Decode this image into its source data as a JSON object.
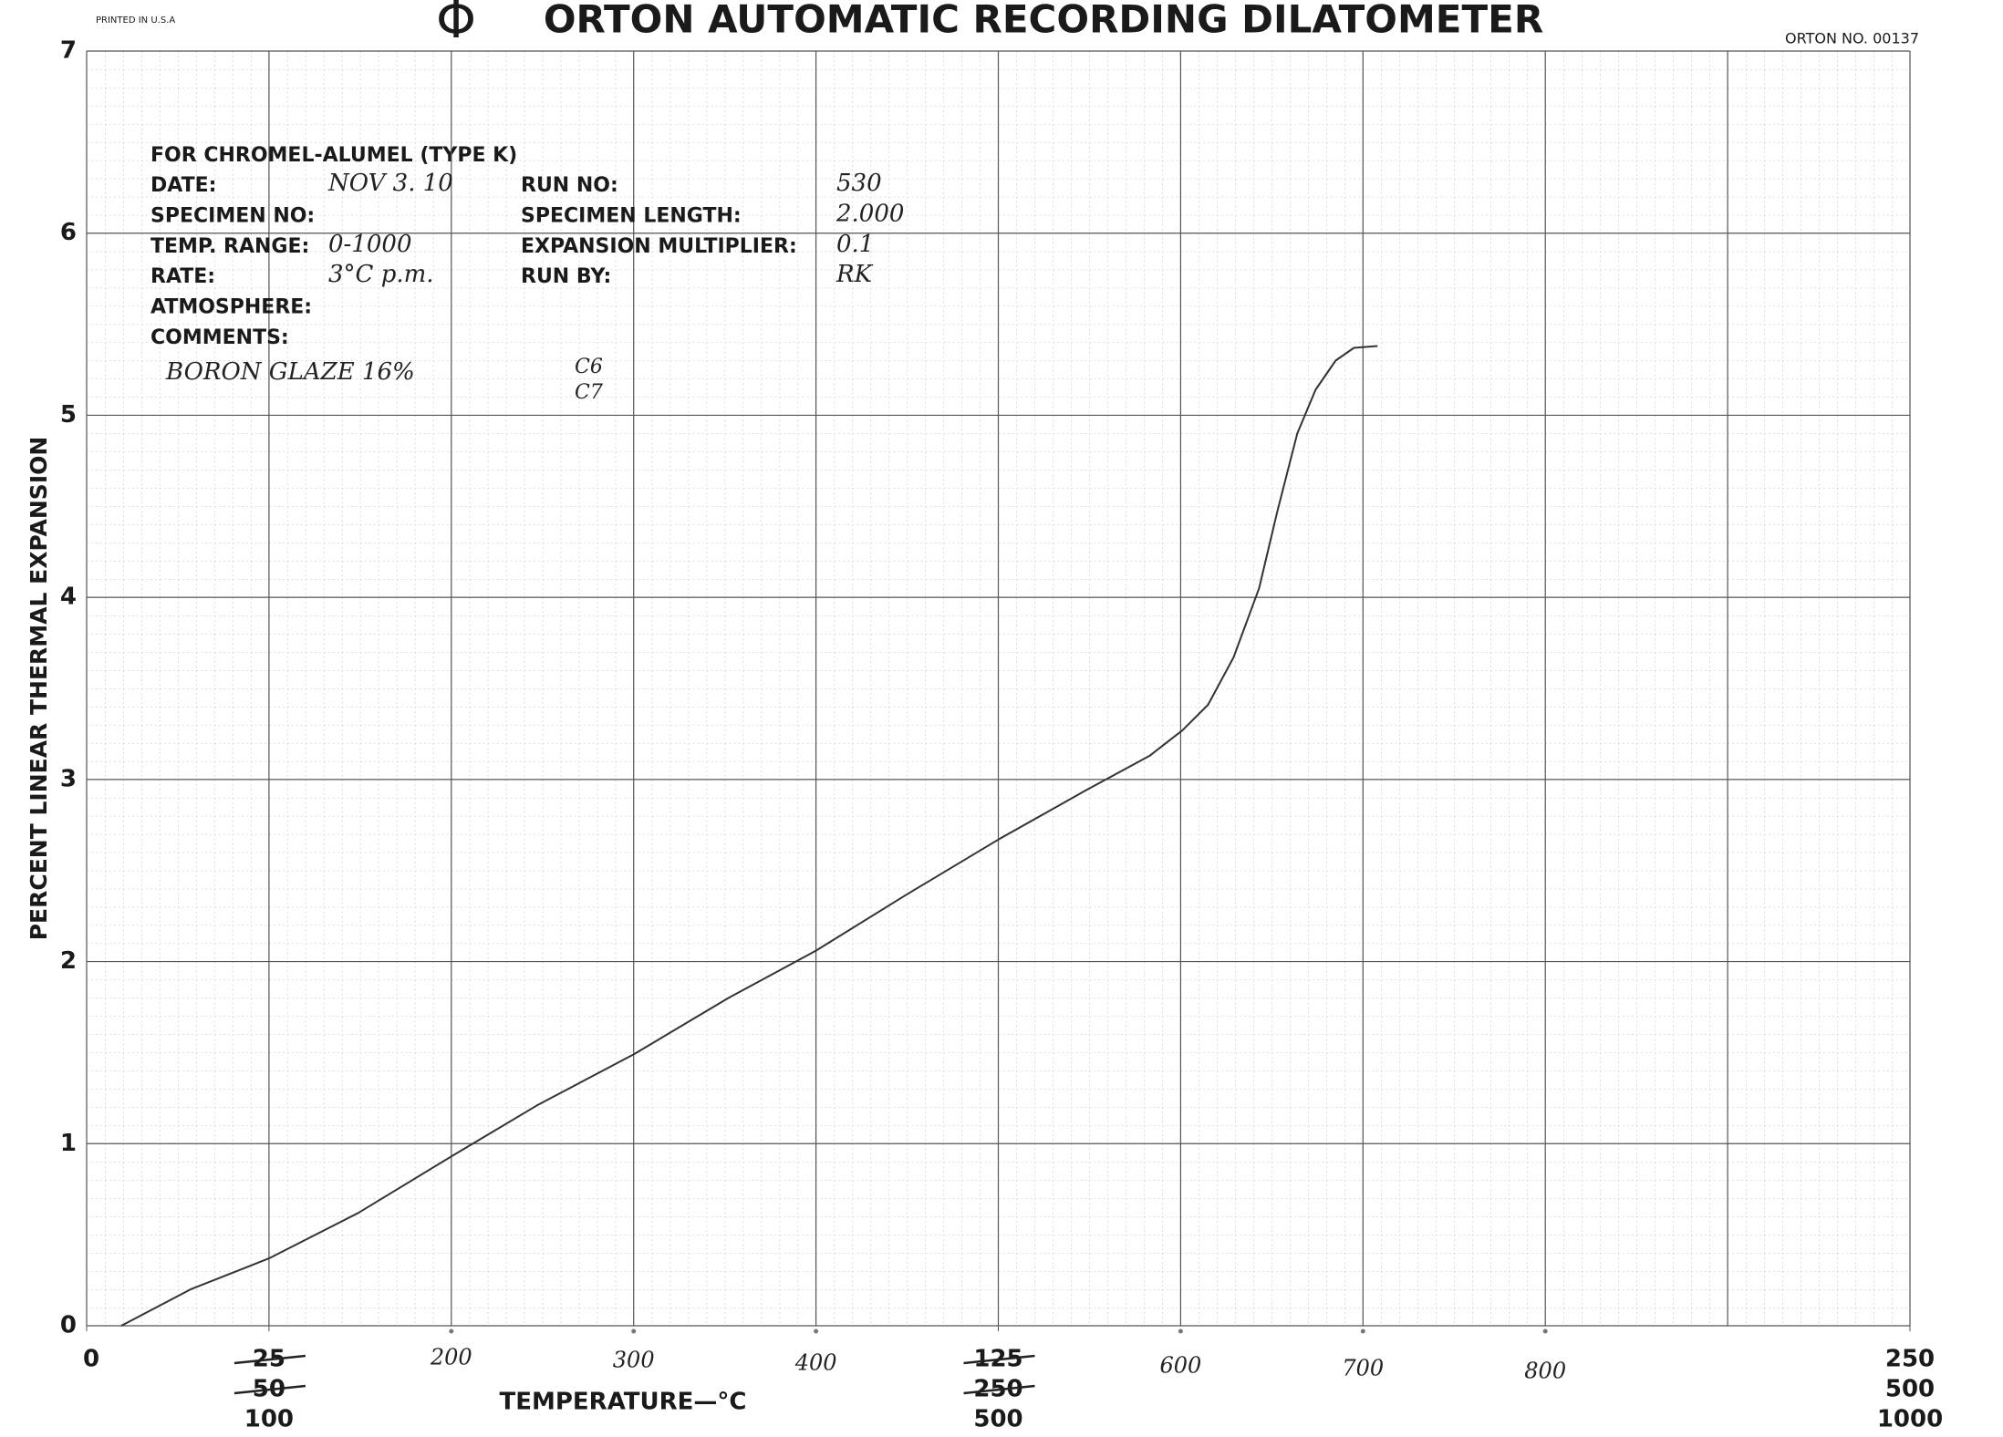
{
  "chart_data": {
    "type": "line",
    "printed_in": "PRINTED IN U.S.A",
    "symbol": "Φ",
    "title": "ORTON AUTOMATIC RECORDING DILATOMETER",
    "chart_number": "ORTON NO. 00137",
    "y_label": "PERCENT LINEAR THERMAL EXPANSION",
    "x_label": "TEMPERATURE—°C",
    "form": {
      "heading": "FOR CHROMEL-ALUMEL (TYPE K)",
      "left_fields": [
        {
          "label": "DATE:",
          "value": "NOV 3. 10"
        },
        {
          "label": "SPECIMEN NO:"
        },
        {
          "label": "TEMP. RANGE:",
          "value": "0-1000"
        },
        {
          "label": "RATE:",
          "value": "3°C p.m."
        },
        {
          "label": "ATMOSPHERE:"
        },
        {
          "label": "COMMENTS:"
        }
      ],
      "right_fields": [
        {
          "label": "RUN NO:",
          "value": "530"
        },
        {
          "label": "SPECIMEN LENGTH:",
          "value": "2.000"
        },
        {
          "label": "EXPANSION MULTIPLIER:",
          "value": "0.1"
        },
        {
          "label": "RUN BY:",
          "value": "RK"
        }
      ],
      "comments": "BORON GLAZE 16%",
      "cones": [
        "C6",
        "C7"
      ]
    },
    "xlim": [
      0,
      1000
    ],
    "ylim": [
      0,
      7
    ],
    "xticks": [
      0,
      100,
      500,
      1000
    ],
    "xticks_handwritten": [
      200,
      300,
      400,
      600,
      700,
      800
    ],
    "alt_x_scales": [
      [
        {
          "value": 100,
          "label": "25",
          "struck": true
        },
        {
          "value": 500,
          "label": "125",
          "struck": true
        },
        {
          "value": 1000,
          "label": "250",
          "struck": false
        }
      ],
      [
        {
          "value": 100,
          "label": "50",
          "struck": true
        },
        {
          "value": 500,
          "label": "250",
          "struck": true
        },
        {
          "value": 1000,
          "label": "500",
          "struck": false
        }
      ]
    ],
    "xgrid_step": 100,
    "yticks": [
      0,
      1,
      2,
      3,
      4,
      5,
      6,
      7
    ],
    "grid": true,
    "color": "#333333",
    "x": [
      19,
      57,
      100,
      149,
      200,
      247,
      300,
      352,
      400,
      450,
      500,
      548,
      583,
      601,
      615,
      629,
      643,
      653,
      664,
      674,
      685,
      695,
      708
    ],
    "values": [
      0,
      0.2,
      0.37,
      0.62,
      0.93,
      1.21,
      1.49,
      1.8,
      2.06,
      2.37,
      2.67,
      2.94,
      3.13,
      3.27,
      3.41,
      3.67,
      4.05,
      4.47,
      4.9,
      5.14,
      5.3,
      5.37,
      5.38
    ]
  }
}
